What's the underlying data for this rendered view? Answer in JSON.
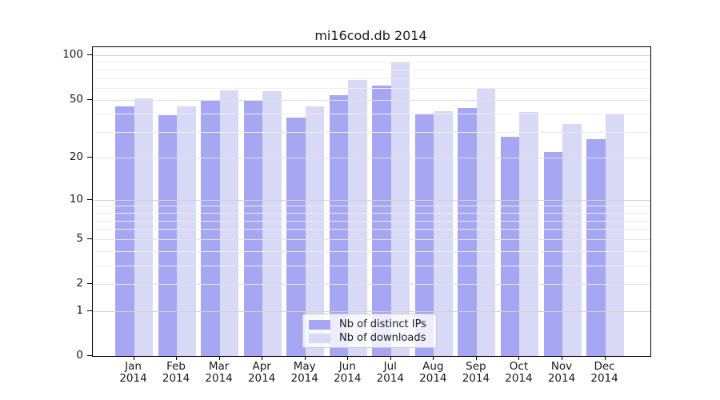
{
  "figure_title": "mi16cod.db 2014",
  "chart_data": {
    "type": "bar",
    "title": "mi16cod.db 2014",
    "categories": [
      "Jan",
      "Feb",
      "Mar",
      "Apr",
      "May",
      "Jun",
      "Jul",
      "Aug",
      "Sep",
      "Oct",
      "Nov",
      "Dec"
    ],
    "year_label": "2014",
    "series": [
      {
        "name": "Nb of distinct IPs",
        "color": "#a6a6f2",
        "values": [
          45,
          39,
          49,
          50,
          38,
          54,
          62,
          40,
          44,
          28,
          22,
          27
        ]
      },
      {
        "name": "Nb of downloads",
        "color": "#d8d8f7",
        "values": [
          51,
          45,
          58,
          57,
          45,
          68,
          89,
          42,
          59,
          41,
          34,
          40
        ]
      }
    ],
    "yscale": "log10(1+y)",
    "ylim": [
      0,
      101
    ],
    "y_ticks": [
      0,
      1,
      2,
      5,
      10,
      20,
      50,
      100
    ],
    "y_tick_labels": [
      "0",
      "1",
      "2",
      "5",
      "10",
      "20",
      "50",
      "100"
    ],
    "y_minor_gridlines": [
      3,
      4,
      6,
      7,
      8,
      9,
      30,
      40,
      60,
      70,
      80,
      90
    ],
    "y_emphasized_gridlines": [
      1,
      10,
      100
    ],
    "grid": "on, drawn above bars",
    "legend_position": "lower center inside plot",
    "xlabel": "",
    "ylabel": ""
  }
}
